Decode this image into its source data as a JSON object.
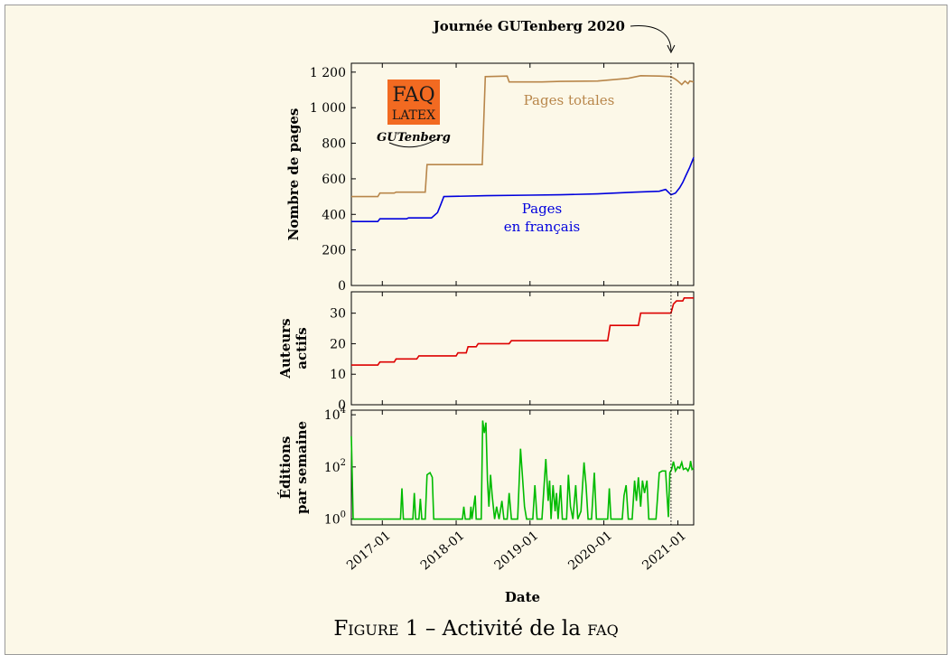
{
  "caption": {
    "prefix": "Figure 1",
    "separator": "–",
    "text": "Activité de la",
    "suffix": "faq"
  },
  "logo": {
    "line1": "FAQ",
    "line2": "LATEX",
    "sub": "GUTenberg",
    "color": "#f26a21"
  },
  "annotation": {
    "text": "Journée GUTenberg 2020",
    "date": "2020-11-28"
  },
  "colors": {
    "total": "#b8864a",
    "french": "#0000dd",
    "authors": "#dd0000",
    "edits": "#00bb00",
    "background": "#fcf8e8"
  },
  "x_axis": {
    "label": "Date",
    "range": [
      "2016-08-01",
      "2021-03-20"
    ],
    "ticks": [
      "2017-01",
      "2018-01",
      "2019-01",
      "2020-01",
      "2021-01"
    ]
  },
  "chart_data": [
    {
      "type": "line",
      "ylabel": "Nombre de pages",
      "ylim": [
        0,
        1250
      ],
      "yticks": [
        "0",
        "200",
        "400",
        "600",
        "800",
        "1 000",
        "1 200"
      ],
      "series": [
        {
          "name": "Pages totales",
          "points": [
            [
              "2016-08-01",
              500
            ],
            [
              "2016-12-10",
              500
            ],
            [
              "2016-12-20",
              520
            ],
            [
              "2017-03-01",
              520
            ],
            [
              "2017-03-10",
              525
            ],
            [
              "2017-08-01",
              525
            ],
            [
              "2017-08-10",
              680
            ],
            [
              "2018-05-10",
              680
            ],
            [
              "2018-05-25",
              1175
            ],
            [
              "2018-09-10",
              1178
            ],
            [
              "2018-09-20",
              1145
            ],
            [
              "2019-03-01",
              1145
            ],
            [
              "2019-06-01",
              1148
            ],
            [
              "2019-12-01",
              1150
            ],
            [
              "2020-05-01",
              1165
            ],
            [
              "2020-07-01",
              1180
            ],
            [
              "2020-10-01",
              1178
            ],
            [
              "2020-11-28",
              1175
            ],
            [
              "2020-12-20",
              1160
            ],
            [
              "2021-01-01",
              1150
            ],
            [
              "2021-01-20",
              1130
            ],
            [
              "2021-02-05",
              1150
            ],
            [
              "2021-02-20",
              1135
            ],
            [
              "2021-03-01",
              1150
            ],
            [
              "2021-03-20",
              1145
            ]
          ]
        },
        {
          "name": "Pages\nen français",
          "points": [
            [
              "2016-08-01",
              360
            ],
            [
              "2016-12-10",
              360
            ],
            [
              "2016-12-20",
              375
            ],
            [
              "2017-05-01",
              375
            ],
            [
              "2017-05-10",
              380
            ],
            [
              "2017-09-01",
              380
            ],
            [
              "2017-10-01",
              410
            ],
            [
              "2017-10-15",
              450
            ],
            [
              "2017-11-01",
              500
            ],
            [
              "2018-06-01",
              505
            ],
            [
              "2019-01-01",
              508
            ],
            [
              "2019-06-01",
              510
            ],
            [
              "2019-12-01",
              515
            ],
            [
              "2020-06-01",
              525
            ],
            [
              "2020-10-01",
              530
            ],
            [
              "2020-11-01",
              540
            ],
            [
              "2020-11-28",
              510
            ],
            [
              "2020-12-20",
              520
            ],
            [
              "2021-01-10",
              550
            ],
            [
              "2021-01-25",
              580
            ],
            [
              "2021-02-10",
              620
            ],
            [
              "2021-03-01",
              665
            ],
            [
              "2021-03-20",
              720
            ]
          ]
        }
      ]
    },
    {
      "type": "line",
      "ylabel": "Auteurs\nactifs",
      "ylim": [
        0,
        37
      ],
      "yticks": [
        "0",
        "10",
        "20",
        "30"
      ],
      "series": [
        {
          "name": "Auteurs actifs",
          "points": [
            [
              "2016-08-01",
              13
            ],
            [
              "2016-12-10",
              13
            ],
            [
              "2016-12-20",
              14
            ],
            [
              "2017-03-01",
              14
            ],
            [
              "2017-03-10",
              15
            ],
            [
              "2017-06-20",
              15
            ],
            [
              "2017-07-01",
              16
            ],
            [
              "2018-01-01",
              16
            ],
            [
              "2018-01-10",
              17
            ],
            [
              "2018-02-20",
              17
            ],
            [
              "2018-03-01",
              19
            ],
            [
              "2018-04-10",
              19
            ],
            [
              "2018-04-20",
              20
            ],
            [
              "2018-09-20",
              20
            ],
            [
              "2018-10-01",
              21
            ],
            [
              "2020-01-20",
              21
            ],
            [
              "2020-02-01",
              26
            ],
            [
              "2020-06-20",
              26
            ],
            [
              "2020-07-01",
              30
            ],
            [
              "2020-11-28",
              30
            ],
            [
              "2020-12-10",
              33
            ],
            [
              "2020-12-25",
              34
            ],
            [
              "2021-01-25",
              34
            ],
            [
              "2021-02-01",
              35
            ],
            [
              "2021-03-20",
              35
            ]
          ]
        }
      ]
    },
    {
      "type": "line",
      "ylabel": "Éditions\npar semaine",
      "scale": "log",
      "ylim": [
        0.6,
        15000
      ],
      "yticks": [
        {
          "base": "10",
          "exp": "0"
        },
        {
          "base": "10",
          "exp": "2"
        },
        {
          "base": "10",
          "exp": "4"
        }
      ],
      "series": [
        {
          "name": "Éditions par semaine",
          "points": [
            [
              "2016-08-01",
              1500
            ],
            [
              "2016-08-10",
              1
            ],
            [
              "2017-04-01",
              1
            ],
            [
              "2017-04-08",
              15
            ],
            [
              "2017-04-15",
              1
            ],
            [
              "2017-06-01",
              1
            ],
            [
              "2017-06-08",
              10
            ],
            [
              "2017-06-15",
              1
            ],
            [
              "2017-07-01",
              1
            ],
            [
              "2017-07-08",
              6
            ],
            [
              "2017-07-15",
              1
            ],
            [
              "2017-08-01",
              1
            ],
            [
              "2017-08-10",
              50
            ],
            [
              "2017-08-25",
              60
            ],
            [
              "2017-09-05",
              40
            ],
            [
              "2017-09-12",
              1
            ],
            [
              "2018-02-01",
              1
            ],
            [
              "2018-02-08",
              3
            ],
            [
              "2018-02-15",
              1
            ],
            [
              "2018-03-10",
              1
            ],
            [
              "2018-03-15",
              3
            ],
            [
              "2018-03-20",
              1
            ],
            [
              "2018-04-05",
              8
            ],
            [
              "2018-04-10",
              1
            ],
            [
              "2018-05-05",
              1
            ],
            [
              "2018-05-12",
              6000
            ],
            [
              "2018-05-20",
              2000
            ],
            [
              "2018-05-28",
              5000
            ],
            [
              "2018-06-05",
              30
            ],
            [
              "2018-06-12",
              3
            ],
            [
              "2018-06-20",
              50
            ],
            [
              "2018-06-28",
              8
            ],
            [
              "2018-07-10",
              1
            ],
            [
              "2018-07-20",
              3
            ],
            [
              "2018-08-01",
              1
            ],
            [
              "2018-08-15",
              5
            ],
            [
              "2018-08-25",
              1
            ],
            [
              "2018-09-10",
              1
            ],
            [
              "2018-09-20",
              10
            ],
            [
              "2018-10-01",
              1
            ],
            [
              "2018-11-01",
              1
            ],
            [
              "2018-11-15",
              500
            ],
            [
              "2018-11-25",
              40
            ],
            [
              "2018-12-05",
              3
            ],
            [
              "2018-12-15",
              1
            ],
            [
              "2019-01-15",
              1
            ],
            [
              "2019-01-25",
              20
            ],
            [
              "2019-02-05",
              1
            ],
            [
              "2019-03-01",
              1
            ],
            [
              "2019-03-20",
              200
            ],
            [
              "2019-04-01",
              5
            ],
            [
              "2019-04-08",
              30
            ],
            [
              "2019-04-15",
              1
            ],
            [
              "2019-04-25",
              20
            ],
            [
              "2019-05-05",
              2
            ],
            [
              "2019-05-12",
              10
            ],
            [
              "2019-05-20",
              1
            ],
            [
              "2019-06-01",
              20
            ],
            [
              "2019-06-10",
              1
            ],
            [
              "2019-07-01",
              1
            ],
            [
              "2019-07-10",
              50
            ],
            [
              "2019-07-20",
              3
            ],
            [
              "2019-08-01",
              1
            ],
            [
              "2019-08-15",
              20
            ],
            [
              "2019-08-25",
              1
            ],
            [
              "2019-09-10",
              2
            ],
            [
              "2019-09-25",
              150
            ],
            [
              "2019-10-05",
              20
            ],
            [
              "2019-10-15",
              1
            ],
            [
              "2019-11-01",
              1
            ],
            [
              "2019-11-15",
              60
            ],
            [
              "2019-11-25",
              1
            ],
            [
              "2020-01-20",
              1
            ],
            [
              "2020-01-28",
              15
            ],
            [
              "2020-02-05",
              1
            ],
            [
              "2020-04-01",
              1
            ],
            [
              "2020-04-10",
              8
            ],
            [
              "2020-04-20",
              20
            ],
            [
              "2020-05-01",
              1
            ],
            [
              "2020-05-20",
              1
            ],
            [
              "2020-06-01",
              30
            ],
            [
              "2020-06-10",
              5
            ],
            [
              "2020-06-20",
              40
            ],
            [
              "2020-07-01",
              3
            ],
            [
              "2020-07-10",
              30
            ],
            [
              "2020-07-20",
              10
            ],
            [
              "2020-08-01",
              30
            ],
            [
              "2020-08-10",
              1
            ],
            [
              "2020-09-15",
              1
            ],
            [
              "2020-10-01",
              60
            ],
            [
              "2020-10-15",
              70
            ],
            [
              "2020-11-01",
              70
            ],
            [
              "2020-11-15",
              1.2
            ],
            [
              "2020-11-22",
              60
            ],
            [
              "2020-12-01",
              80
            ],
            [
              "2020-12-10",
              160
            ],
            [
              "2020-12-20",
              70
            ],
            [
              "2021-01-01",
              100
            ],
            [
              "2021-01-10",
              90
            ],
            [
              "2021-01-20",
              150
            ],
            [
              "2021-01-28",
              80
            ],
            [
              "2021-02-10",
              90
            ],
            [
              "2021-02-20",
              70
            ],
            [
              "2021-03-01",
              100
            ],
            [
              "2021-03-05",
              170
            ],
            [
              "2021-03-12",
              80
            ],
            [
              "2021-03-20",
              90
            ]
          ]
        }
      ]
    }
  ]
}
